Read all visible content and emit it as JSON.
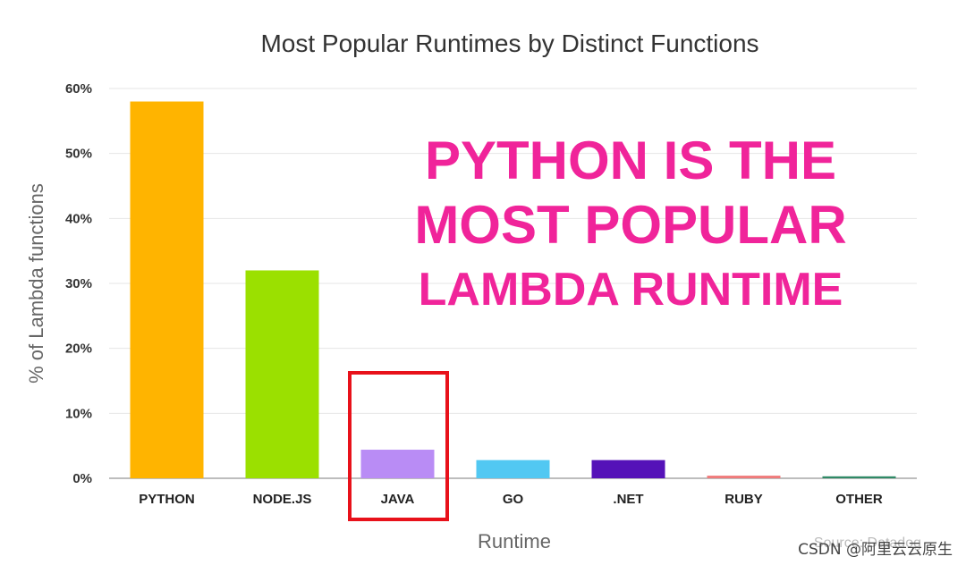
{
  "chart_data": {
    "type": "bar",
    "title": "Most Popular Runtimes by Distinct Functions",
    "xlabel": "Runtime",
    "ylabel": "% of Lambda functions",
    "ylim": [
      0,
      60
    ],
    "yticks": [
      0,
      10,
      20,
      30,
      40,
      50,
      60
    ],
    "ytick_labels": [
      "0%",
      "10%",
      "20%",
      "30%",
      "40%",
      "50%",
      "60%"
    ],
    "grid": true,
    "categories": [
      "PYTHON",
      "NODE.JS",
      "JAVA",
      "GO",
      ".NET",
      "RUBY",
      "OTHER"
    ],
    "values": [
      58,
      32,
      4.4,
      2.8,
      2.8,
      0.4,
      0.3
    ],
    "colors": [
      "#ffb400",
      "#9be000",
      "#b98cf5",
      "#52c8f2",
      "#5512b8",
      "#f07a7a",
      "#2f8a66"
    ],
    "highlighted_category": "JAVA",
    "highlight_color": "#e8111a",
    "annotation_lines": [
      "PYTHON IS THE",
      "MOST POPULAR",
      "LAMBDA RUNTIME"
    ],
    "annotation_color": "#f0249a",
    "source": "Source: Datadog"
  },
  "watermark": "CSDN @阿里云云原生"
}
